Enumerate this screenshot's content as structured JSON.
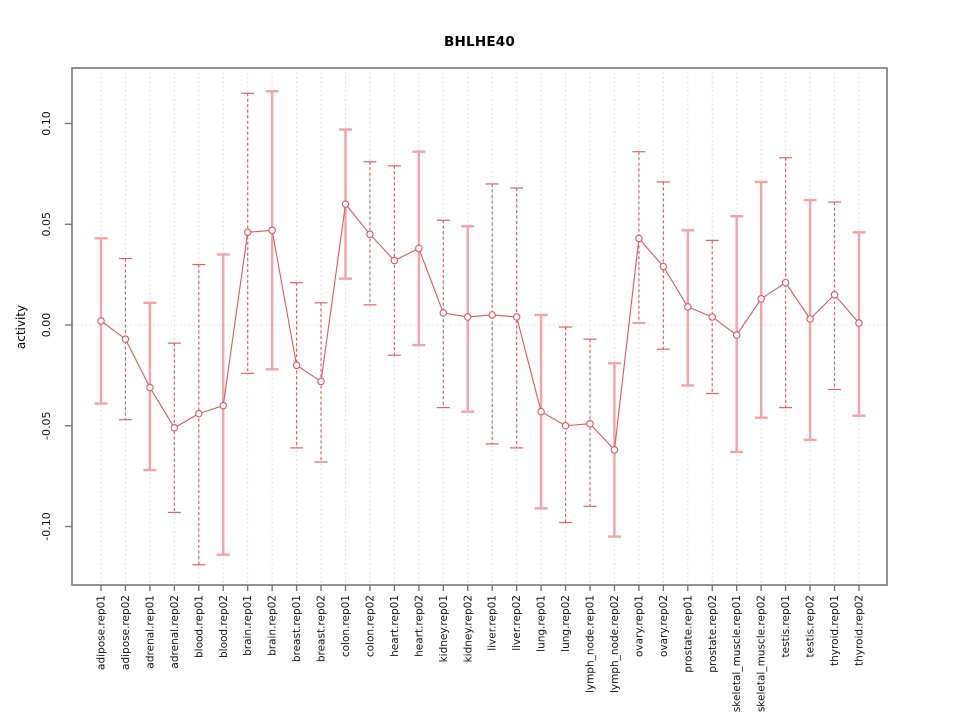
{
  "title": "BHLHE40",
  "y_axis": {
    "label": "activity",
    "tick_labels": [
      "0.10",
      "0.05",
      "0.00",
      "-0.05",
      "-0.10"
    ],
    "tick_values": [
      0.1,
      0.05,
      0.0,
      -0.05,
      -0.1
    ]
  },
  "chart_data": {
    "type": "scatter",
    "subtype": "points-with-error-bars-connected-by-line",
    "title": "BHLHE40",
    "xlabel": "",
    "ylabel": "activity",
    "ylim": [
      -0.128,
      0.127
    ],
    "grid": "vertical-dotted-per-category",
    "zero_reference_line": true,
    "legend": "none",
    "categories": [
      "adipose.rep01",
      "adipose.rep02",
      "adrenal.rep01",
      "adrenal.rep02",
      "blood.rep01",
      "blood.rep02",
      "brain.rep01",
      "brain.rep02",
      "breast.rep01",
      "breast.rep02",
      "colon.rep01",
      "colon.rep02",
      "heart.rep01",
      "heart.rep02",
      "kidney.rep01",
      "kidney.rep02",
      "liver.rep01",
      "liver.rep02",
      "lung.rep01",
      "lung.rep02",
      "lymph_node.rep01",
      "lymph_node.rep02",
      "ovary.rep01",
      "ovary.rep02",
      "prostate.rep01",
      "prostate.rep02",
      "skeletal_muscle.rep01",
      "skeletal_muscle.rep02",
      "testis.rep01",
      "testis.rep02",
      "thyroid.rep01",
      "thyroid.rep02"
    ],
    "series": [
      {
        "name": "activity",
        "values": [
          0.002,
          -0.007,
          -0.031,
          -0.051,
          -0.044,
          -0.04,
          0.046,
          0.047,
          -0.02,
          -0.028,
          0.06,
          0.045,
          0.032,
          0.038,
          0.006,
          0.004,
          0.005,
          0.004,
          -0.043,
          -0.05,
          -0.049,
          -0.062,
          0.043,
          0.029,
          0.009,
          0.004,
          -0.005,
          0.013,
          0.021,
          0.003,
          0.015,
          0.001
        ],
        "err_lo": [
          -0.039,
          -0.047,
          -0.072,
          -0.093,
          -0.119,
          -0.114,
          -0.024,
          -0.022,
          -0.061,
          -0.068,
          0.023,
          0.01,
          -0.015,
          -0.01,
          -0.041,
          -0.043,
          -0.059,
          -0.061,
          -0.091,
          -0.098,
          -0.09,
          -0.105,
          0.001,
          -0.012,
          -0.03,
          -0.034,
          -0.063,
          -0.046,
          -0.041,
          -0.057,
          -0.032,
          -0.045
        ],
        "err_hi": [
          0.043,
          0.033,
          0.011,
          -0.009,
          0.03,
          0.035,
          0.115,
          0.116,
          0.021,
          0.011,
          0.097,
          0.081,
          0.079,
          0.086,
          0.052,
          0.049,
          0.07,
          0.068,
          0.005,
          -0.001,
          -0.007,
          -0.019,
          0.086,
          0.071,
          0.047,
          0.042,
          0.054,
          0.071,
          0.083,
          0.062,
          0.061,
          0.046
        ],
        "bar_styles": [
          "solid",
          "dashed",
          "solid",
          "dashed",
          "dashed",
          "solid",
          "dashed",
          "solid",
          "dashed",
          "dashed",
          "solid",
          "dashed",
          "dashed",
          "solid",
          "dashed",
          "solid",
          "dashed",
          "dashed",
          "solid",
          "dashed",
          "dashed",
          "solid",
          "dashed",
          "dashed",
          "solid",
          "dashed",
          "solid",
          "solid",
          "dashed",
          "solid",
          "dashed",
          "solid"
        ]
      }
    ],
    "colors": {
      "point": "#e25757",
      "line": "#e25757",
      "error_bar_solid": "#f5a3a3",
      "error_bar_dashed": "#e06363",
      "gridline": "#d9d9d9",
      "zero_line": "#dcdcdc",
      "frame": "#777777",
      "text": "#111111"
    }
  }
}
